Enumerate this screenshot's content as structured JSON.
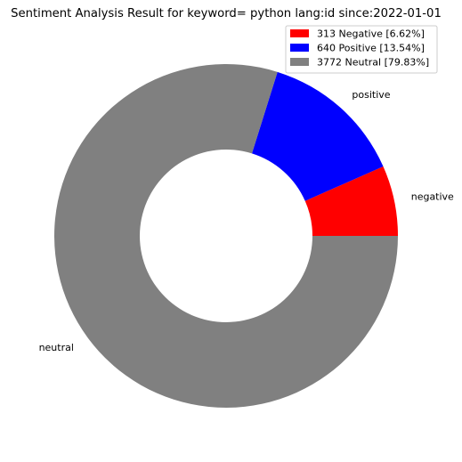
{
  "chart_data": {
    "type": "pie",
    "title": "Sentiment Analysis Result for keyword= python lang:id since:2022-01-01",
    "donut": true,
    "legend_position": "top-right",
    "slices": [
      {
        "label": "negative",
        "value": 313,
        "percent": 6.62,
        "color": "#ff0000",
        "legend": "313 Negative [6.62%]"
      },
      {
        "label": "positive",
        "value": 640,
        "percent": 13.54,
        "color": "#0000ff",
        "legend": "640 Positive [13.54%]"
      },
      {
        "label": "neutral",
        "value": 3772,
        "percent": 79.83,
        "color": "#808080",
        "legend": "3772 Neutral [79.83%]"
      }
    ]
  }
}
